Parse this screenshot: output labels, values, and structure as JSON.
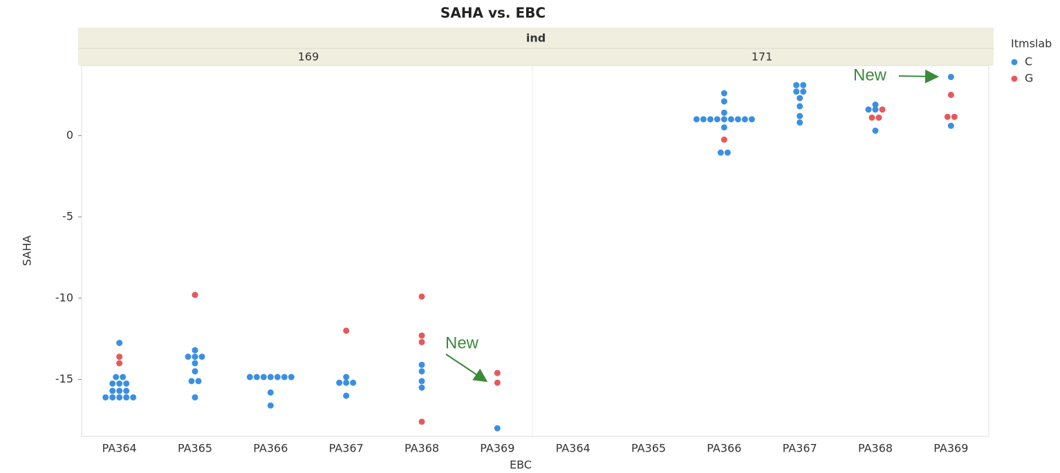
{
  "chart_data": {
    "type": "dotplot",
    "title": "SAHA vs. EBC",
    "facet_label": "ind",
    "x_label": "EBC",
    "y_label": "SAHA",
    "legend_title": "Itmslab",
    "legend_position": "right",
    "ylim": [
      -18.5,
      4.3
    ],
    "yticks": [
      -15,
      -10,
      -5,
      0
    ],
    "grid": false,
    "annotations": [
      "New",
      "New"
    ],
    "series_meta": [
      {
        "name": "C",
        "color": "#3a8fe4"
      },
      {
        "name": "G",
        "color": "#e8585b"
      }
    ],
    "facets": [
      {
        "label": "169",
        "categories": [
          "PA364",
          "PA365",
          "PA366",
          "PA367",
          "PA368",
          "PA369"
        ],
        "series": [
          {
            "name": "C",
            "values": [
              [
                -12.75,
                -14.85,
                -14.85,
                -15.25,
                -15.25,
                -15.25,
                -15.7,
                -15.7,
                -15.7,
                -16.1,
                -16.1,
                -16.1,
                -16.1,
                -16.1
              ],
              [
                -13.2,
                -13.6,
                -13.6,
                -13.6,
                -14.0,
                -14.5,
                -15.1,
                -15.1,
                -16.1
              ],
              [
                -14.85,
                -14.85,
                -14.85,
                -14.85,
                -14.85,
                -14.85,
                -14.85,
                -15.8,
                -16.6
              ],
              [
                -14.85,
                -15.2,
                -15.2,
                -15.2,
                -16.0
              ],
              [
                -14.1,
                -14.5,
                -15.1,
                -15.5
              ],
              [
                -18.0
              ]
            ]
          },
          {
            "name": "G",
            "values": [
              [
                -13.6,
                -14.0
              ],
              [
                -9.8
              ],
              [],
              [
                -12.0
              ],
              [
                -9.9,
                -12.3,
                -12.7,
                -17.6
              ],
              [
                -14.6,
                -15.2
              ]
            ]
          }
        ]
      },
      {
        "label": "171",
        "categories": [
          "PA364",
          "PA365",
          "PA366",
          "PA367",
          "PA368",
          "PA369"
        ],
        "series": [
          {
            "name": "C",
            "values": [
              [],
              [],
              [
                2.6,
                2.1,
                1.4,
                1.0,
                1.0,
                1.0,
                1.0,
                1.0,
                1.0,
                1.0,
                1.0,
                1.0,
                0.5,
                -1.05,
                -1.05
              ],
              [
                3.1,
                3.1,
                2.7,
                2.7,
                2.3,
                1.8,
                1.2,
                0.8
              ],
              [
                1.9,
                1.6,
                1.6,
                0.3
              ],
              [
                3.6,
                0.6
              ]
            ]
          },
          {
            "name": "G",
            "values": [
              [],
              [],
              [
                -0.25
              ],
              [],
              [
                1.6,
                1.1,
                1.1
              ],
              [
                2.5,
                1.15,
                1.15
              ]
            ]
          }
        ]
      }
    ]
  }
}
